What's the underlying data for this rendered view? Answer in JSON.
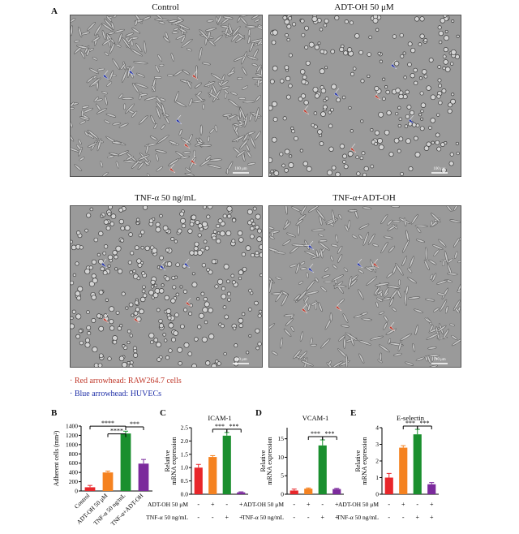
{
  "panel_letters": {
    "a": "A",
    "b": "B",
    "c": "C",
    "d": "D",
    "e": "E"
  },
  "micrographs": [
    {
      "title": "Control",
      "scale_bar": "100 μm",
      "red_arrowheads": 4,
      "blue_arrowheads": 3
    },
    {
      "title": "ADT-OH 50 μM",
      "scale_bar": "100 μm",
      "red_arrowheads": 3,
      "blue_arrowheads": 3
    },
    {
      "title": "TNF-α 50 ng/mL",
      "scale_bar": "100 μm",
      "red_arrowheads": 3,
      "blue_arrowheads": 3
    },
    {
      "title": "TNF-α+ADT-OH",
      "scale_bar": "100 μm",
      "red_arrowheads": 4,
      "blue_arrowheads": 3
    }
  ],
  "legend": {
    "red": "· Red arrowhead: RAW264.7 cells",
    "blue": "· Blue arrowhead: HUVECs",
    "red_color": "#c0392b",
    "blue_color": "#1f2fa8"
  },
  "colors": {
    "red": "#e8262a",
    "orange": "#f58220",
    "green": "#1a8f2e",
    "purple": "#7b2a9c"
  },
  "chart_data": [
    {
      "type": "bar",
      "panel": "B",
      "title": "",
      "ylabel": "Adherent cells (mm²)",
      "categories": [
        "Control",
        "ADT-OH 50 μM",
        "TNF-α 50 ng/mL",
        "TNF-α+ADT-OH"
      ],
      "values": [
        80,
        400,
        1240,
        590
      ],
      "errors": [
        40,
        30,
        50,
        90
      ],
      "ylim": [
        0,
        1400
      ],
      "yticks": [
        "0",
        "200",
        "400",
        "600",
        "800",
        "1000",
        "1200",
        "1400"
      ],
      "significance": [
        "****",
        "****",
        "***"
      ]
    },
    {
      "type": "bar",
      "panel": "C",
      "title": "ICAM-1",
      "ylabel": "Relative mRNA expression",
      "values": [
        1.0,
        1.4,
        2.2,
        0.07
      ],
      "errors": [
        0.12,
        0.05,
        0.12,
        0.02
      ],
      "ylim": [
        0,
        2.5
      ],
      "yticks": [
        "0.0",
        "0.5",
        "1.0",
        "1.5",
        "2.0",
        "2.5"
      ],
      "significance": [
        "***",
        "***"
      ]
    },
    {
      "type": "bar",
      "panel": "D",
      "title": "VCAM-1",
      "ylabel": "Relative mRNA expression",
      "values": [
        1.0,
        1.5,
        13.2,
        1.4
      ],
      "errors": [
        0.4,
        0.2,
        1.5,
        0.2
      ],
      "ylim": [
        0,
        18
      ],
      "yticks": [
        "0",
        "5",
        "10",
        "15"
      ],
      "significance": [
        "***",
        "***"
      ]
    },
    {
      "type": "bar",
      "panel": "E",
      "title": "E-selectin",
      "ylabel": "Relative mRNA expression",
      "values": [
        1.0,
        2.8,
        3.6,
        0.6
      ],
      "errors": [
        0.25,
        0.12,
        0.3,
        0.1
      ],
      "ylim": [
        0,
        4
      ],
      "yticks": [
        "0",
        "1",
        "2",
        "3",
        "4"
      ],
      "significance": [
        "***",
        "***"
      ]
    }
  ],
  "treatment_table": {
    "row1_label": "ADT-OH 50 μM",
    "row2_label": "TNF-α 50 ng/mL",
    "row1_marks": [
      "-",
      "+",
      "-",
      "+"
    ],
    "row2_marks": [
      "-",
      "-",
      "+",
      "+"
    ]
  }
}
